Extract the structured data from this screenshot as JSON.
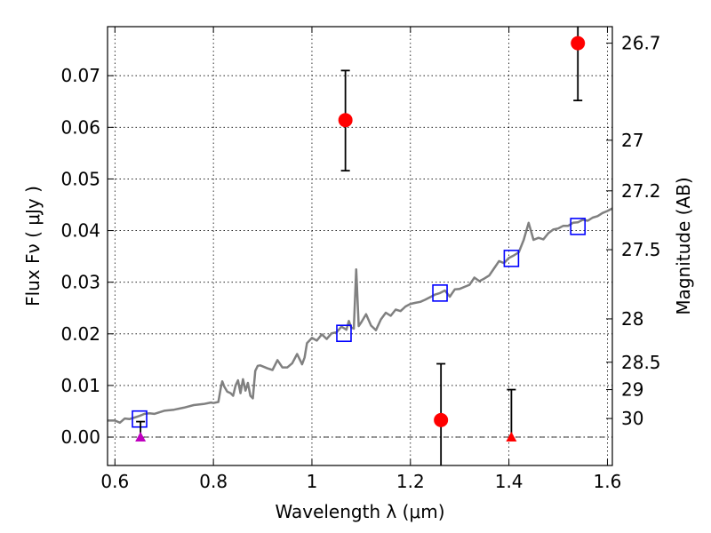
{
  "chart_data": {
    "type": "scatter",
    "xlabel": "Wavelength  λ (μm)",
    "ylabel": "Flux  Fν  ( μJy )",
    "ylabel_right": "Magnitude (AB)",
    "xlim": [
      0.585,
      1.61
    ],
    "ylim": [
      -0.0055,
      0.0795
    ],
    "grid": true,
    "x_ticks": [
      {
        "value": 0.6,
        "label": "0.6"
      },
      {
        "value": 0.8,
        "label": "0.8"
      },
      {
        "value": 1.0,
        "label": "1"
      },
      {
        "value": 1.2,
        "label": "1.2"
      },
      {
        "value": 1.4,
        "label": "1.4"
      },
      {
        "value": 1.6,
        "label": "1.6"
      }
    ],
    "y_ticks": [
      {
        "value": 0.0,
        "label": "0.00"
      },
      {
        "value": 0.01,
        "label": "0.01"
      },
      {
        "value": 0.02,
        "label": "0.02"
      },
      {
        "value": 0.03,
        "label": "0.03"
      },
      {
        "value": 0.04,
        "label": "0.04"
      },
      {
        "value": 0.05,
        "label": "0.05"
      },
      {
        "value": 0.06,
        "label": "0.06"
      },
      {
        "value": 0.07,
        "label": "0.07"
      }
    ],
    "right_ticks": [
      {
        "flux": 0.0763,
        "label": "26.7"
      },
      {
        "flux": 0.0575,
        "label": "27"
      },
      {
        "flux": 0.0477,
        "label": "27.2"
      },
      {
        "flux": 0.0363,
        "label": "27.5"
      },
      {
        "flux": 0.0229,
        "label": "28"
      },
      {
        "flux": 0.0145,
        "label": "28.5"
      },
      {
        "flux": 0.0092,
        "label": "29"
      },
      {
        "flux": 0.0036,
        "label": "30"
      }
    ],
    "series": [
      {
        "kind": "line",
        "color": "#808080",
        "x": [
          0.585,
          0.6,
          0.61,
          0.62,
          0.63,
          0.64,
          0.65,
          0.66,
          0.67,
          0.68,
          0.7,
          0.72,
          0.74,
          0.76,
          0.78,
          0.795,
          0.8,
          0.81,
          0.815,
          0.818,
          0.822,
          0.828,
          0.835,
          0.84,
          0.845,
          0.85,
          0.855,
          0.86,
          0.865,
          0.87,
          0.875,
          0.88,
          0.885,
          0.89,
          0.895,
          0.9,
          0.91,
          0.92,
          0.93,
          0.94,
          0.95,
          0.96,
          0.97,
          0.98,
          0.985,
          0.99,
          1.0,
          1.01,
          1.02,
          1.03,
          1.04,
          1.05,
          1.06,
          1.07,
          1.075,
          1.08,
          1.085,
          1.09,
          1.095,
          1.1,
          1.11,
          1.12,
          1.13,
          1.14,
          1.15,
          1.16,
          1.17,
          1.18,
          1.19,
          1.2,
          1.21,
          1.22,
          1.23,
          1.24,
          1.25,
          1.26,
          1.27,
          1.28,
          1.29,
          1.3,
          1.31,
          1.32,
          1.33,
          1.34,
          1.35,
          1.36,
          1.37,
          1.38,
          1.39,
          1.4,
          1.41,
          1.42,
          1.43,
          1.44,
          1.45,
          1.46,
          1.47,
          1.48,
          1.49,
          1.5,
          1.51,
          1.52,
          1.53,
          1.54,
          1.55,
          1.56,
          1.57,
          1.58,
          1.59,
          1.6,
          1.61
        ],
        "y": [
          0.0032,
          0.0032,
          0.0028,
          0.0036,
          0.0035,
          0.0038,
          0.0041,
          0.0045,
          0.0046,
          0.0045,
          0.0051,
          0.0053,
          0.0057,
          0.0062,
          0.0064,
          0.0067,
          0.0066,
          0.0068,
          0.0096,
          0.0108,
          0.0098,
          0.0088,
          0.0085,
          0.008,
          0.01,
          0.011,
          0.0085,
          0.0112,
          0.009,
          0.0105,
          0.008,
          0.0075,
          0.0128,
          0.0138,
          0.0139,
          0.0137,
          0.0133,
          0.013,
          0.0149,
          0.0135,
          0.0135,
          0.0143,
          0.0161,
          0.0141,
          0.0154,
          0.0182,
          0.0192,
          0.0187,
          0.0199,
          0.019,
          0.0201,
          0.0203,
          0.0214,
          0.0208,
          0.0225,
          0.0212,
          0.021,
          0.0325,
          0.0215,
          0.0222,
          0.0238,
          0.0216,
          0.0207,
          0.0228,
          0.0241,
          0.0235,
          0.0247,
          0.0244,
          0.0253,
          0.0258,
          0.026,
          0.0262,
          0.0266,
          0.0271,
          0.0276,
          0.0279,
          0.0284,
          0.0272,
          0.0286,
          0.0287,
          0.0291,
          0.0295,
          0.0309,
          0.0302,
          0.0307,
          0.0313,
          0.0327,
          0.0341,
          0.0337,
          0.0347,
          0.0352,
          0.0358,
          0.0382,
          0.0415,
          0.0382,
          0.0386,
          0.0383,
          0.0395,
          0.0402,
          0.0404,
          0.0409,
          0.0409,
          0.0415,
          0.0416,
          0.0421,
          0.0419,
          0.0425,
          0.0428,
          0.0434,
          0.0438,
          0.0443
        ]
      },
      {
        "kind": "squares",
        "color": "#0000ff",
        "x": [
          0.65,
          1.065,
          1.26,
          1.405,
          1.54
        ],
        "y": [
          0.0035,
          0.0201,
          0.0279,
          0.0346,
          0.0408
        ]
      },
      {
        "kind": "points",
        "color": "#ff0000",
        "x": [
          1.068,
          1.262,
          1.54
        ],
        "y": [
          0.0614,
          0.0033,
          0.0763
        ],
        "err_low": [
          0.0516,
          -0.0055,
          0.0652
        ],
        "err_high": [
          0.071,
          0.0142,
          0.0795
        ]
      },
      {
        "kind": "upper-limits",
        "colors": [
          "#bf00bf",
          "#ff0000"
        ],
        "x": [
          0.652,
          1.405
        ],
        "y": [
          0.0,
          0.0
        ],
        "err_high": [
          0.003,
          0.0092
        ]
      }
    ]
  }
}
